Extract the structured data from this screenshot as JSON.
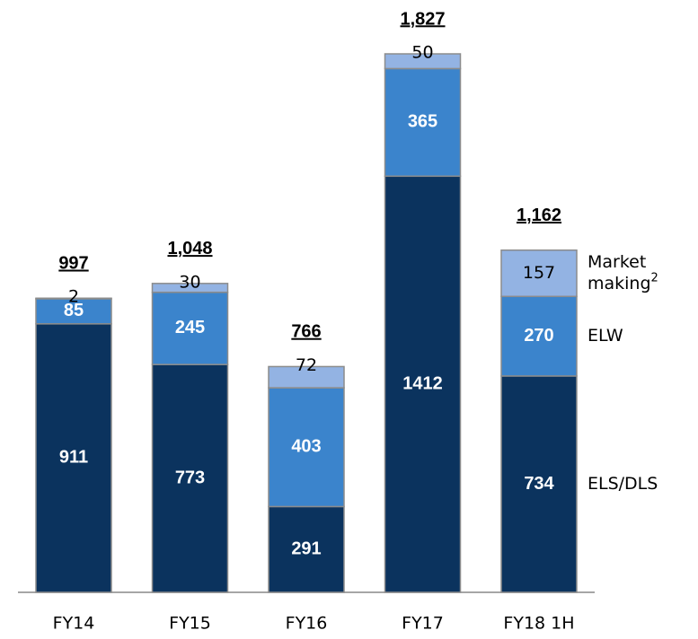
{
  "chart_data": {
    "type": "stacked_bar",
    "categories": [
      "FY14",
      "FY15",
      "FY16",
      "FY17",
      "FY18 1H"
    ],
    "series": [
      {
        "name": "ELS/DLS",
        "color": "#0b335e",
        "label_color": "#ffffff",
        "values": [
          911,
          773,
          291,
          1412,
          734
        ]
      },
      {
        "name": "ELW",
        "color": "#3b84cc",
        "label_color": "#ffffff",
        "values": [
          85,
          245,
          403,
          365,
          270
        ]
      },
      {
        "name": "Market making",
        "footnote": "2",
        "color": "#93b3e3",
        "label_color": "#000000",
        "values": [
          2,
          30,
          72,
          50,
          157
        ]
      }
    ],
    "totals": {
      "values": [
        997,
        1048,
        766,
        1827,
        1162
      ],
      "value_labels": [
        "997",
        "1,048",
        "766",
        "1,827",
        "1,162"
      ]
    }
  }
}
